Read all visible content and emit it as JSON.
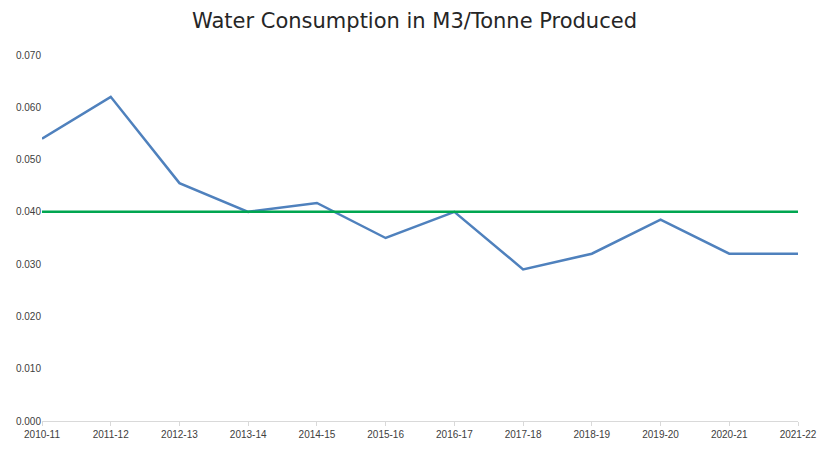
{
  "chart_data": {
    "type": "line",
    "title": "Water Consumption in M3/Tonne Produced",
    "categories": [
      "2010-11",
      "2011-12",
      "2012-13",
      "2013-14",
      "2014-15",
      "2015-16",
      "2016-17",
      "2017-18",
      "2018-19",
      "2019-20",
      "2020-21",
      "2021-22"
    ],
    "series": [
      {
        "color": "#4f81bd",
        "values": [
          0.054,
          0.062,
          0.0455,
          0.04,
          0.0417,
          0.035,
          0.04,
          0.029,
          0.032,
          0.0385,
          0.032,
          0.032
        ]
      },
      {
        "color": "#00a650",
        "values": [
          0.04,
          0.04,
          0.04,
          0.04,
          0.04,
          0.04,
          0.04,
          0.04,
          0.04,
          0.04,
          0.04,
          0.04
        ]
      }
    ],
    "ylim": [
      0,
      0.07
    ],
    "yticks": [
      {
        "value": 0,
        "label": "0.000"
      },
      {
        "value": 0.01,
        "label": "0.010"
      },
      {
        "value": 0.02,
        "label": "0.020"
      },
      {
        "value": 0.03,
        "label": "0.030"
      },
      {
        "value": 0.04,
        "label": "0.040"
      },
      {
        "value": 0.05,
        "label": "0.050"
      },
      {
        "value": 0.06,
        "label": "0.060"
      },
      {
        "value": 0.07,
        "label": "0.070"
      }
    ],
    "grid": false
  }
}
